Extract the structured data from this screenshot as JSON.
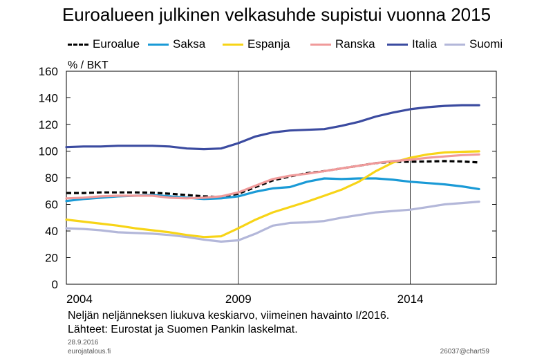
{
  "header": {
    "title": "Euroalueen julkinen velkasuhde supistui vuonna 2015",
    "unit_label": "% / BKT"
  },
  "footer": {
    "note": "Neljän neljänneksen liukuva keskiarvo, viimeinen havainto I/2016.",
    "sources": "Lähteet: Eurostat ja Suomen Pankin laskelmat.",
    "date": "28.9.2016",
    "site": "eurojatalous.fi",
    "code": "26037@chart59"
  },
  "chart_data": {
    "type": "line",
    "title": "Euroalueen julkinen velkasuhde supistui vuonna 2015",
    "ylabel": "% / BKT",
    "xlim": [
      2004,
      2016.5
    ],
    "ylim": [
      0,
      160
    ],
    "yticks": [
      0,
      20,
      40,
      60,
      80,
      100,
      120,
      140,
      160
    ],
    "xticks": [
      2004,
      2009,
      2014
    ],
    "grid": "vertical lines at 2009 and 2014",
    "legend_position": "top",
    "series": [
      {
        "name": "Euroalue",
        "color": "#000000",
        "dash": "dashed",
        "x": [
          2004,
          2004.5,
          2005,
          2005.5,
          2006,
          2006.5,
          2007,
          2007.5,
          2008,
          2008.5,
          2009,
          2009.5,
          2010,
          2010.5,
          2011,
          2011.5,
          2012,
          2012.5,
          2013,
          2013.5,
          2014,
          2014.5,
          2015,
          2015.5,
          2016
        ],
        "y": [
          68.5,
          68.5,
          69,
          69,
          69,
          68.8,
          68,
          67,
          66,
          65.5,
          68,
          73,
          78,
          81,
          83.5,
          85,
          87,
          89,
          91,
          92,
          92,
          92.2,
          92.5,
          92.2,
          91.5
        ]
      },
      {
        "name": "Saksa",
        "color": "#1a9ad6",
        "x": [
          2004,
          2004.5,
          2005,
          2005.5,
          2006,
          2006.5,
          2007,
          2007.5,
          2008,
          2008.5,
          2009,
          2009.5,
          2010,
          2010.5,
          2011,
          2011.5,
          2012,
          2012.5,
          2013,
          2013.5,
          2014,
          2014.5,
          2015,
          2015.5,
          2016
        ],
        "y": [
          62.5,
          64,
          65,
          66,
          66.5,
          67,
          66,
          65,
          64,
          64.5,
          66,
          69.5,
          72,
          73,
          77,
          79.5,
          79,
          79.5,
          79.5,
          78.5,
          77,
          76,
          75,
          73.5,
          71.5
        ]
      },
      {
        "name": "Espanja",
        "color": "#f7d417",
        "x": [
          2004,
          2004.5,
          2005,
          2005.5,
          2006,
          2006.5,
          2007,
          2007.5,
          2008,
          2008.5,
          2009,
          2009.5,
          2010,
          2010.5,
          2011,
          2011.5,
          2012,
          2012.5,
          2013,
          2013.5,
          2014,
          2014.5,
          2015,
          2015.5,
          2016
        ],
        "y": [
          48.5,
          47,
          45.5,
          44,
          42,
          40.5,
          39,
          37,
          35.5,
          36,
          42,
          48.5,
          54,
          58,
          62,
          66.5,
          71,
          77,
          85,
          91.5,
          95,
          97.5,
          99,
          99.5,
          99.8
        ]
      },
      {
        "name": "Ranska",
        "color": "#f09a9a",
        "x": [
          2004,
          2004.5,
          2005,
          2005.5,
          2006,
          2006.5,
          2007,
          2007.5,
          2008,
          2008.5,
          2009,
          2009.5,
          2010,
          2010.5,
          2011,
          2011.5,
          2012,
          2012.5,
          2013,
          2013.5,
          2014,
          2014.5,
          2015,
          2015.5,
          2016
        ],
        "y": [
          64.5,
          65,
          66,
          66.5,
          66.5,
          66.5,
          65,
          64.5,
          65,
          66,
          69,
          74,
          79,
          81.5,
          83,
          85,
          87,
          89,
          91,
          92.5,
          93.5,
          95,
          96,
          97,
          97.5
        ]
      },
      {
        "name": "Italia",
        "color": "#3b4ba0",
        "x": [
          2004,
          2004.5,
          2005,
          2005.5,
          2006,
          2006.5,
          2007,
          2007.5,
          2008,
          2008.5,
          2009,
          2009.5,
          2010,
          2010.5,
          2011,
          2011.5,
          2012,
          2012.5,
          2013,
          2013.5,
          2014,
          2014.5,
          2015,
          2015.5,
          2016
        ],
        "y": [
          103,
          103.5,
          103.5,
          104,
          104,
          104,
          103.5,
          102,
          101.5,
          102,
          106,
          111,
          114,
          115.5,
          116,
          116.5,
          119,
          122,
          126,
          129,
          131.5,
          133,
          134,
          134.5,
          134.5
        ]
      },
      {
        "name": "Suomi",
        "color": "#b3b7d9",
        "x": [
          2004,
          2004.5,
          2005,
          2005.5,
          2006,
          2006.5,
          2007,
          2007.5,
          2008,
          2008.5,
          2009,
          2009.5,
          2010,
          2010.5,
          2011,
          2011.5,
          2012,
          2012.5,
          2013,
          2013.5,
          2014,
          2014.5,
          2015,
          2015.5,
          2016
        ],
        "y": [
          42,
          41.5,
          40.5,
          39,
          38.5,
          38,
          37,
          35.5,
          33.5,
          32,
          33,
          38,
          44,
          46,
          46.5,
          47.5,
          50,
          52,
          54,
          55,
          56,
          58,
          60,
          61,
          62
        ]
      }
    ]
  }
}
